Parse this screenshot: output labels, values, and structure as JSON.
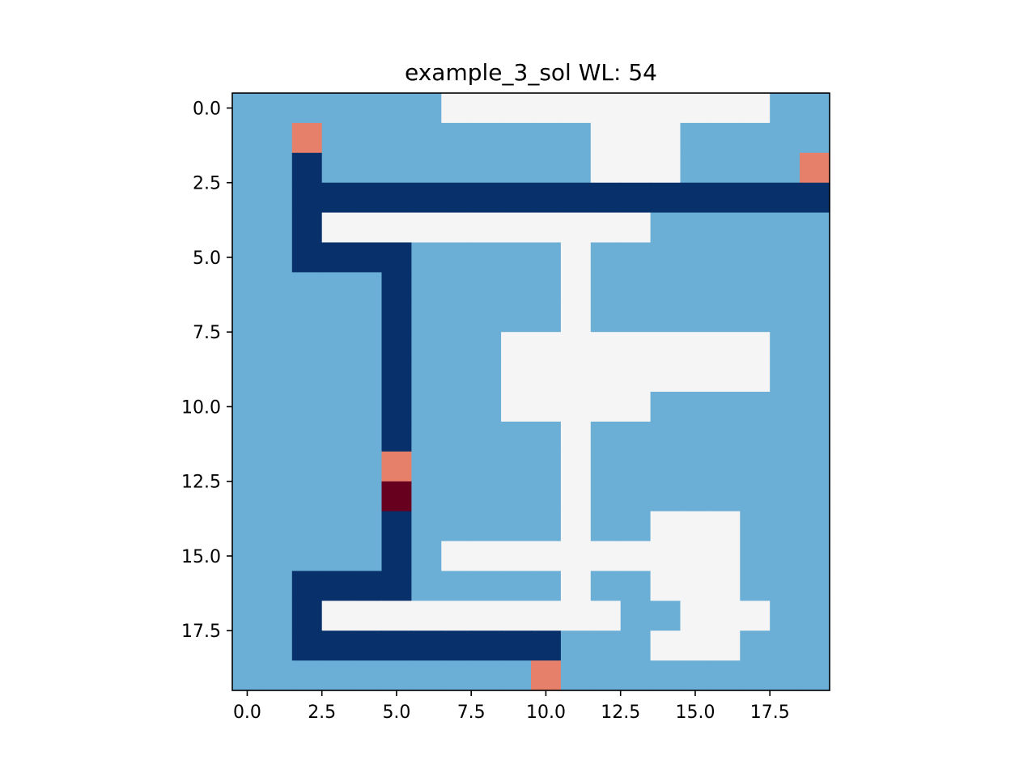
{
  "chart_data": {
    "type": "heatmap",
    "title": "example_3_sol WL: 54",
    "xlabel": "",
    "ylabel": "",
    "xlim": [
      -0.5,
      19.5
    ],
    "ylim": [
      19.5,
      -0.5
    ],
    "y_inverted": true,
    "grid": false,
    "legend": "none",
    "x_ticks": [
      0.0,
      2.5,
      5.0,
      7.5,
      10.0,
      12.5,
      15.0,
      17.5
    ],
    "x_tick_labels": [
      "0.0",
      "2.5",
      "5.0",
      "7.5",
      "10.0",
      "12.5",
      "15.0",
      "17.5"
    ],
    "y_ticks": [
      0.0,
      2.5,
      5.0,
      7.5,
      10.0,
      12.5,
      15.0,
      17.5
    ],
    "y_tick_labels": [
      "0.0",
      "2.5",
      "5.0",
      "7.5",
      "10.0",
      "12.5",
      "15.0",
      "17.5"
    ],
    "palette": {
      "B": "#6baed6",
      "W": "#f5f5f5",
      "N": "#08306b",
      "S": "#e6806a",
      "D": "#67001f"
    },
    "grid_rows": [
      "BBBBBBBWWWWWWWWWWWBB",
      "BBSBBBBBBBBBWWWBBBBB",
      "BBNBBBBBBBBBWWWBBBBS",
      "BBNNNNNNNNNNNNNNNNNN",
      "BBNWWWWWWWWWWWBBBBBB",
      "BBNNNNBBBBBWBBBBBBBB",
      "BBBBBNBBBBBWBBBBBBBB",
      "BBBBBNBBBBBWBBBBBBBB",
      "BBBBBNBBBWWWWWWWWWBB",
      "BBBBBNBBBWWWWWWWWWBB",
      "BBBBBNBBBWWWWWBBBBBB",
      "BBBBBNBBBBBWBBBBBBBB",
      "BBBBBSBBBBBWBBBBBBBB",
      "BBBBBDBBBBBWBBBBBBBB",
      "BBBBBNBBBBBWBBWWWBBB",
      "BBBBBNBWWWWWWWWWWBBB",
      "BBNNNNBBBBBWBBWWWBBB",
      "BBNWWWWWWWWWWBBWWWBB",
      "BBNNNNNNNNNBBBWWWBBB",
      "BBBBBBBBBBSBBBBBBBBB"
    ]
  }
}
